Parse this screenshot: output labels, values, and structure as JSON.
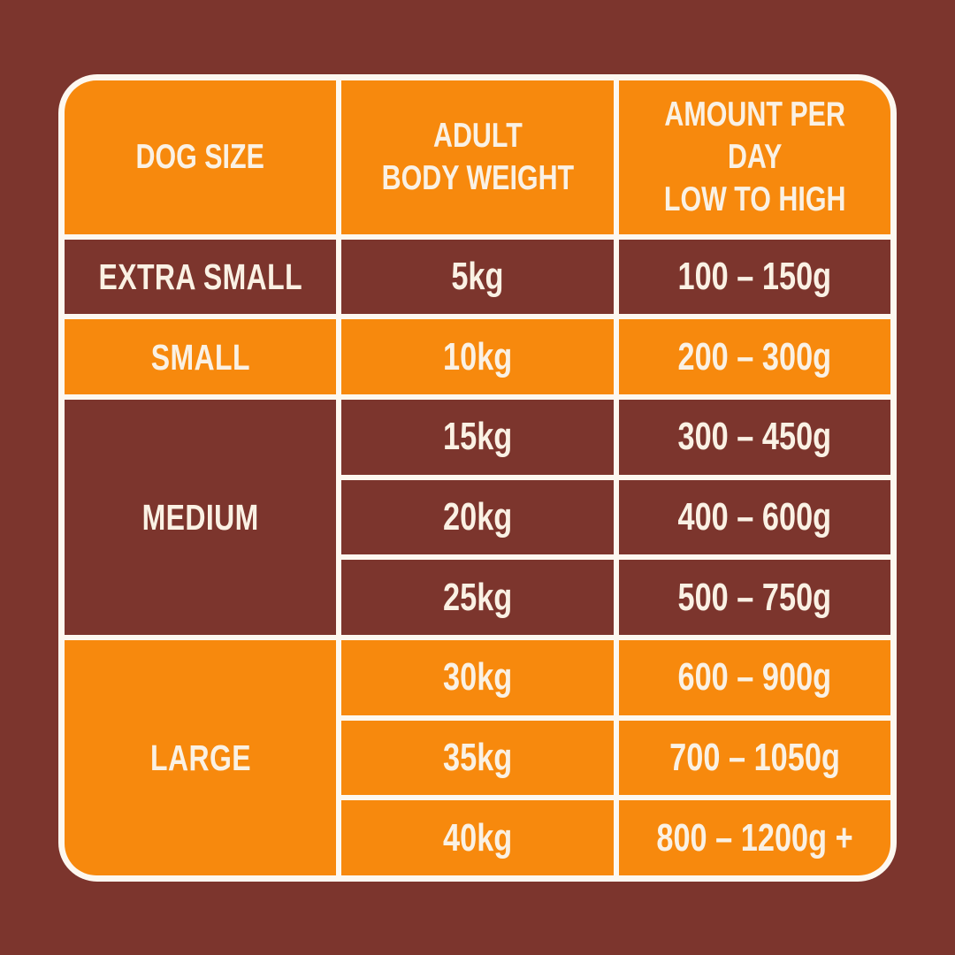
{
  "page": {
    "background_color": "#7C352D"
  },
  "colors": {
    "orange": "#F7890D",
    "maroon": "#7C352D",
    "grid_line": "#FDF8F0",
    "text": "#FAF1E4"
  },
  "table": {
    "headers": {
      "col1": "DOG SIZE",
      "col2": "ADULT\nBODY WEIGHT",
      "col3": "AMOUNT PER DAY\nLOW TO HIGH"
    },
    "groups": [
      {
        "size": "EXTRA SMALL",
        "rows": [
          {
            "weight": "5kg",
            "amount": "100 – 150g"
          }
        ]
      },
      {
        "size": "SMALL",
        "rows": [
          {
            "weight": "10kg",
            "amount": "200 – 300g"
          }
        ]
      },
      {
        "size": "MEDIUM",
        "rows": [
          {
            "weight": "15kg",
            "amount": "300 – 450g"
          },
          {
            "weight": "20kg",
            "amount": "400 – 600g"
          },
          {
            "weight": "25kg",
            "amount": "500 – 750g"
          }
        ]
      },
      {
        "size": "LARGE",
        "rows": [
          {
            "weight": "30kg",
            "amount": "600 – 900g"
          },
          {
            "weight": "35kg",
            "amount": "700 – 1050g"
          },
          {
            "weight": "40kg",
            "amount": "800 – 1200g +"
          }
        ]
      }
    ]
  },
  "chart_data": {
    "type": "table",
    "columns": [
      "DOG SIZE",
      "ADULT BODY WEIGHT",
      "AMOUNT PER DAY LOW TO HIGH"
    ],
    "rows": [
      [
        "EXTRA SMALL",
        "5kg",
        "100 – 150g"
      ],
      [
        "SMALL",
        "10kg",
        "200 – 300g"
      ],
      [
        "MEDIUM",
        "15kg",
        "300 – 450g"
      ],
      [
        "MEDIUM",
        "20kg",
        "400 – 600g"
      ],
      [
        "MEDIUM",
        "25kg",
        "500 – 750g"
      ],
      [
        "LARGE",
        "30kg",
        "600 – 900g"
      ],
      [
        "LARGE",
        "35kg",
        "700 – 1050g"
      ],
      [
        "LARGE",
        "40kg",
        "800 – 1200g +"
      ]
    ],
    "layout": {
      "row_group_colors": {
        "header": "orange",
        "EXTRA SMALL": "maroon",
        "SMALL": "orange",
        "MEDIUM": "maroon",
        "LARGE": "orange"
      },
      "grid": "on",
      "merged_cells": [
        "MEDIUM spans 3 rows in col 1",
        "LARGE spans 3 rows in col 1"
      ]
    }
  }
}
